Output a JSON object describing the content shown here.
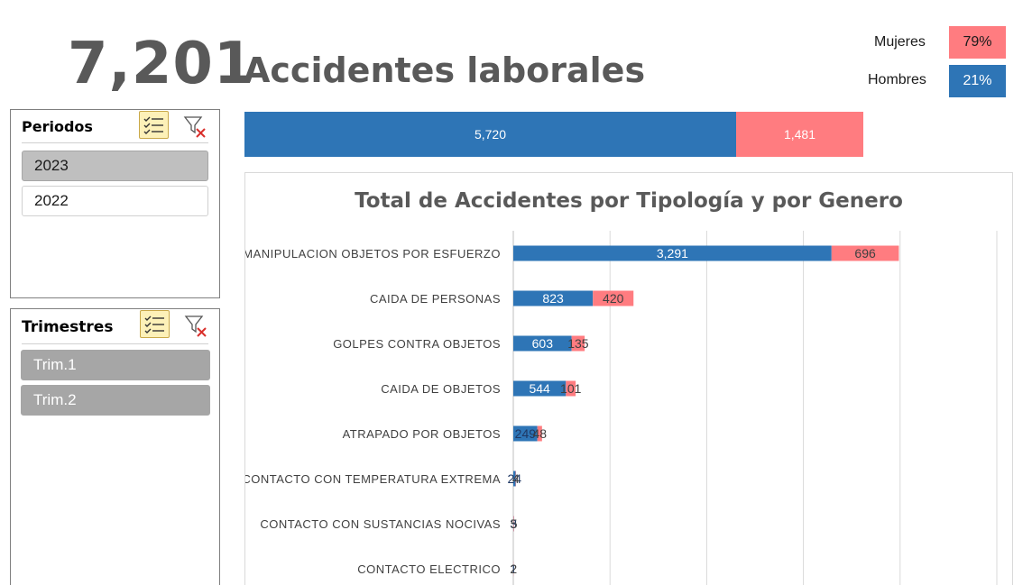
{
  "header": {
    "total": "7,201",
    "title": "Accidentes laborales"
  },
  "gender_legend": {
    "women_label": "Mujeres",
    "women_pct": "79%",
    "men_label": "Hombres",
    "men_pct": "21%"
  },
  "colors": {
    "blue": "#2e75b6",
    "pink": "#ff7c80",
    "slicer_selected": "#bfbfbf",
    "slicer_dark": "#a6a6a6"
  },
  "total_bar": {
    "blue_value": 5720,
    "pink_value": 1481,
    "blue_label": "5,720",
    "pink_label": "1,481"
  },
  "slicer_periodos": {
    "title": "Periodos",
    "items": [
      {
        "label": "2023",
        "selected": true
      },
      {
        "label": "2022",
        "selected": false
      }
    ]
  },
  "slicer_trimestres": {
    "title": "Trimestres",
    "items": [
      {
        "label": "Trim.1",
        "selected": true
      },
      {
        "label": "Trim.2",
        "selected": true
      }
    ]
  },
  "chart_data": {
    "type": "bar",
    "orientation": "horizontal",
    "stacked": true,
    "title": "Total de Accidentes por Tipología y por Genero",
    "categories": [
      "MANIPULACION OBJETOS POR ESFUERZO",
      "CAIDA DE PERSONAS",
      "GOLPES CONTRA OBJETOS",
      "CAIDA DE OBJETOS",
      "ATRAPADO POR OBJETOS",
      "CONTACTO CON TEMPERATURA EXTREMA",
      "CONTACTO CON SUSTANCIAS NOCIVAS",
      "CONTACTO ELECTRICO"
    ],
    "series": [
      {
        "values": [
          3291,
          823,
          603,
          544,
          249,
          24,
          3,
          1
        ],
        "labels": [
          "3,291",
          "823",
          "603",
          "544",
          "249",
          "24",
          "3",
          "1"
        ],
        "color": "#2e75b6"
      },
      {
        "values": [
          696,
          420,
          135,
          101,
          48,
          4,
          5,
          2
        ],
        "labels": [
          "696",
          "420",
          "135",
          "101",
          "48",
          "4",
          "5",
          "2"
        ],
        "color": "#ff7c80"
      }
    ],
    "xlim": [
      0,
      5000
    ],
    "grid": true,
    "legend": "none"
  }
}
